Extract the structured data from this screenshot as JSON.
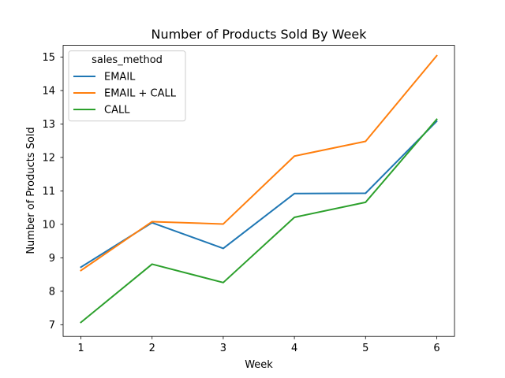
{
  "chart_data": {
    "type": "line",
    "title": "Number of Products Sold By Week",
    "xlabel": "Week",
    "ylabel": "Number of Products Sold",
    "x": [
      1,
      2,
      3,
      4,
      5,
      6
    ],
    "xlim": [
      0.75,
      6.25
    ],
    "ylim": [
      6.65,
      15.35
    ],
    "yticks": [
      7,
      8,
      9,
      10,
      11,
      12,
      13,
      14,
      15
    ],
    "grid": false,
    "legend": {
      "title": "sales_method",
      "placement": "top-left"
    },
    "series": [
      {
        "name": "EMAIL",
        "color": "#1f77b4",
        "values": [
          8.72,
          10.05,
          9.28,
          10.92,
          10.93,
          13.08
        ]
      },
      {
        "name": "EMAIL + CALL",
        "color": "#ff7f0e",
        "values": [
          8.62,
          10.08,
          10.01,
          12.04,
          12.48,
          15.04
        ]
      },
      {
        "name": "CALL",
        "color": "#2ca02c",
        "values": [
          7.07,
          8.81,
          8.26,
          10.21,
          10.66,
          13.14
        ]
      }
    ]
  }
}
